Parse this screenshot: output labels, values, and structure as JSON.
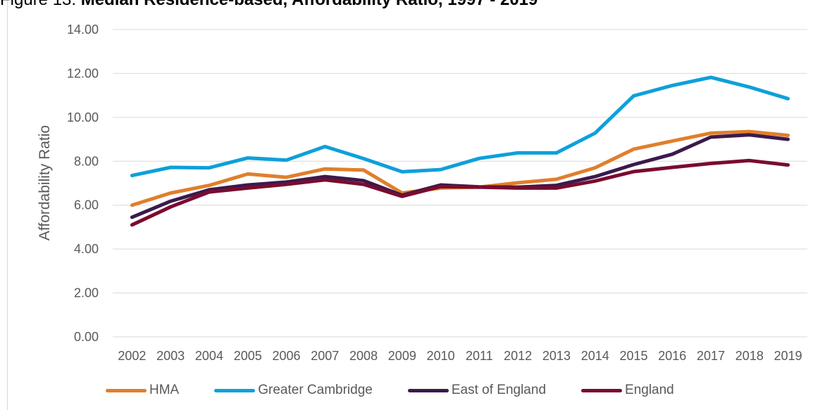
{
  "figure": {
    "prefix": "Figure 13: ",
    "title_bold": "Median Residence-based, Affordability Ratio, 1997 - 2019"
  },
  "chart_data": {
    "type": "line",
    "title": "Median Residence-based, Affordability Ratio, 1997 - 2019",
    "ylabel": "Affordability Ratio",
    "xlabel": "",
    "ylim": [
      0,
      14
    ],
    "y_ticks": [
      "0.00",
      "2.00",
      "4.00",
      "6.00",
      "8.00",
      "10.00",
      "12.00",
      "14.00"
    ],
    "grid": true,
    "legend_position": "bottom",
    "categories": [
      "2002",
      "2003",
      "2004",
      "2005",
      "2006",
      "2007",
      "2008",
      "2009",
      "2010",
      "2011",
      "2012",
      "2013",
      "2014",
      "2015",
      "2016",
      "2017",
      "2018",
      "2019"
    ],
    "series": [
      {
        "name": "HMA",
        "color": "#E07F2C",
        "values": [
          6.0,
          6.55,
          6.9,
          7.42,
          7.27,
          7.65,
          7.6,
          6.55,
          6.78,
          6.82,
          7.02,
          7.18,
          7.7,
          8.55,
          8.92,
          9.28,
          9.35,
          9.18
        ]
      },
      {
        "name": "Greater Cambridge",
        "color": "#0EA0DA",
        "values": [
          7.35,
          7.72,
          7.7,
          8.15,
          8.05,
          8.67,
          8.12,
          7.52,
          7.62,
          8.13,
          8.38,
          8.38,
          9.28,
          10.98,
          11.45,
          11.82,
          11.38,
          10.85
        ]
      },
      {
        "name": "East of England",
        "color": "#3B1A4C",
        "values": [
          5.45,
          6.18,
          6.7,
          6.92,
          7.05,
          7.3,
          7.12,
          6.45,
          6.92,
          6.83,
          6.82,
          6.9,
          7.3,
          7.85,
          8.32,
          9.1,
          9.2,
          9.0
        ]
      },
      {
        "name": "England",
        "color": "#7A0B2E",
        "values": [
          5.1,
          5.92,
          6.6,
          6.78,
          6.95,
          7.15,
          6.95,
          6.4,
          6.85,
          6.82,
          6.78,
          6.78,
          7.1,
          7.53,
          7.72,
          7.9,
          8.03,
          7.83
        ]
      }
    ]
  }
}
